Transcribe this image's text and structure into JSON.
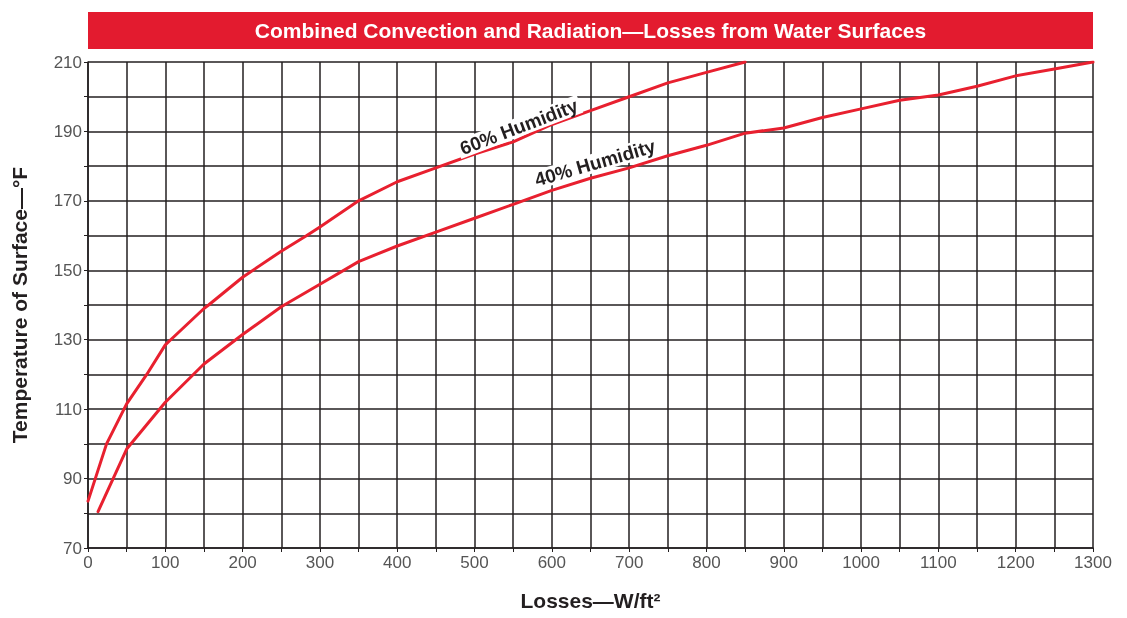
{
  "chart_data": {
    "type": "line",
    "title": "Combined Convection and Radiation—Losses from Water Surfaces",
    "xlabel": "Losses—W/ft²",
    "ylabel": "Temperature of Surface—°F",
    "series": [
      {
        "name": "60% Humidity",
        "color": "#e8202f",
        "x": [
          0,
          24,
          50,
          76,
          100,
          107,
          150,
          156,
          200,
          250,
          283,
          300,
          350,
          400,
          450,
          500,
          550,
          600,
          650,
          700,
          750,
          800,
          850
        ],
        "values": [
          83.5,
          100,
          111.5,
          120,
          128.5,
          130,
          139,
          140,
          148,
          155.5,
          160,
          162.5,
          170,
          175.5,
          179.5,
          183.5,
          187,
          192,
          196,
          200,
          204,
          207,
          210
        ]
      },
      {
        "name": "40% Humidity",
        "color": "#e8202f",
        "x": [
          13,
          50,
          100,
          150,
          200,
          250,
          300,
          350,
          400,
          450,
          500,
          550,
          600,
          650,
          700,
          750,
          800,
          850,
          900,
          950,
          1000,
          1050,
          1100,
          1150,
          1200,
          1250,
          1300
        ],
        "values": [
          80.5,
          98.5,
          112,
          123,
          131.5,
          139.5,
          146,
          152.5,
          157,
          161,
          165,
          169,
          173,
          176.5,
          179.5,
          183,
          186,
          189.5,
          191,
          194,
          196.5,
          199,
          200.5,
          203,
          206,
          208,
          210
        ]
      }
    ],
    "xlim": [
      0,
      1300
    ],
    "ylim": [
      70,
      210
    ],
    "xticks": [
      0,
      {
        "value": 50,
        "label": null
      },
      100,
      {
        "value": 150,
        "label": null
      },
      200,
      {
        "value": 250,
        "label": null
      },
      300,
      {
        "value": 350,
        "label": null
      },
      400,
      {
        "value": 450,
        "label": null
      },
      500,
      {
        "value": 550,
        "label": null
      },
      600,
      {
        "value": 650,
        "label": null
      },
      700,
      {
        "value": 750,
        "label": null
      },
      800,
      {
        "value": 850,
        "label": null
      },
      900,
      {
        "value": 950,
        "label": null
      },
      1000,
      {
        "value": 1050,
        "label": null
      },
      1100,
      {
        "value": 1150,
        "label": null
      },
      1200,
      {
        "value": 1250,
        "label": null
      },
      1300
    ],
    "yticks": [
      70,
      {
        "value": 80,
        "label": null
      },
      90,
      {
        "value": 100,
        "label": null
      },
      110,
      {
        "value": 120,
        "label": null
      },
      130,
      {
        "value": 140,
        "label": null
      },
      150,
      {
        "value": 160,
        "label": null
      },
      170,
      {
        "value": 180,
        "label": null
      },
      190,
      {
        "value": 200,
        "label": null
      },
      210
    ],
    "grid": true,
    "legend": false,
    "marker": "none",
    "line_style": "solid"
  }
}
